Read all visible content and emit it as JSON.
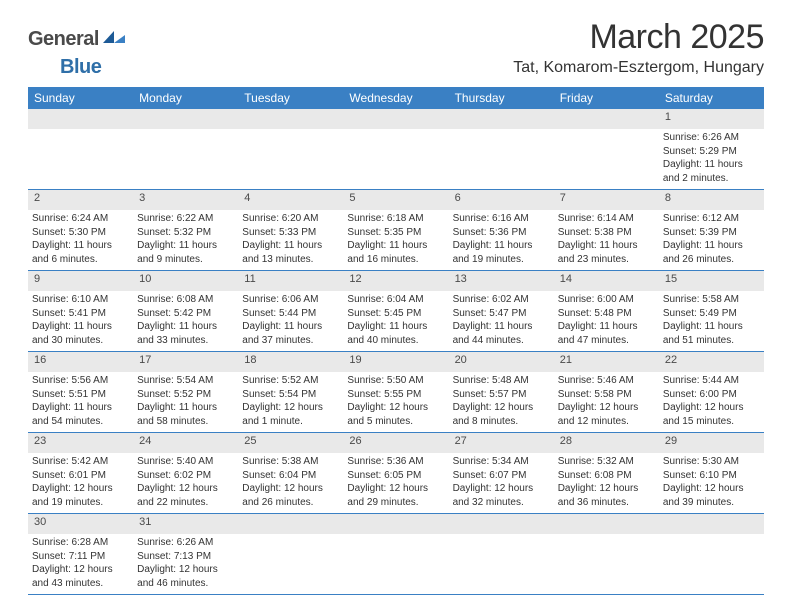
{
  "logo": {
    "text1": "General",
    "text2": "Blue"
  },
  "title": {
    "month": "March 2025",
    "location": "Tat, Komarom-Esztergom, Hungary"
  },
  "colors": {
    "header_bg": "#3a80c4",
    "header_text": "#ffffff",
    "daynum_bg": "#e9e9e9",
    "border": "#3a80c4",
    "body_text": "#333333",
    "logo_grey": "#4a4a4a",
    "logo_blue": "#2f6fa8"
  },
  "day_labels": [
    "Sunday",
    "Monday",
    "Tuesday",
    "Wednesday",
    "Thursday",
    "Friday",
    "Saturday"
  ],
  "weeks": [
    [
      {
        "num": "",
        "sunrise": "",
        "sunset": "",
        "daylight": ""
      },
      {
        "num": "",
        "sunrise": "",
        "sunset": "",
        "daylight": ""
      },
      {
        "num": "",
        "sunrise": "",
        "sunset": "",
        "daylight": ""
      },
      {
        "num": "",
        "sunrise": "",
        "sunset": "",
        "daylight": ""
      },
      {
        "num": "",
        "sunrise": "",
        "sunset": "",
        "daylight": ""
      },
      {
        "num": "",
        "sunrise": "",
        "sunset": "",
        "daylight": ""
      },
      {
        "num": "1",
        "sunrise": "Sunrise: 6:26 AM",
        "sunset": "Sunset: 5:29 PM",
        "daylight": "Daylight: 11 hours and 2 minutes."
      }
    ],
    [
      {
        "num": "2",
        "sunrise": "Sunrise: 6:24 AM",
        "sunset": "Sunset: 5:30 PM",
        "daylight": "Daylight: 11 hours and 6 minutes."
      },
      {
        "num": "3",
        "sunrise": "Sunrise: 6:22 AM",
        "sunset": "Sunset: 5:32 PM",
        "daylight": "Daylight: 11 hours and 9 minutes."
      },
      {
        "num": "4",
        "sunrise": "Sunrise: 6:20 AM",
        "sunset": "Sunset: 5:33 PM",
        "daylight": "Daylight: 11 hours and 13 minutes."
      },
      {
        "num": "5",
        "sunrise": "Sunrise: 6:18 AM",
        "sunset": "Sunset: 5:35 PM",
        "daylight": "Daylight: 11 hours and 16 minutes."
      },
      {
        "num": "6",
        "sunrise": "Sunrise: 6:16 AM",
        "sunset": "Sunset: 5:36 PM",
        "daylight": "Daylight: 11 hours and 19 minutes."
      },
      {
        "num": "7",
        "sunrise": "Sunrise: 6:14 AM",
        "sunset": "Sunset: 5:38 PM",
        "daylight": "Daylight: 11 hours and 23 minutes."
      },
      {
        "num": "8",
        "sunrise": "Sunrise: 6:12 AM",
        "sunset": "Sunset: 5:39 PM",
        "daylight": "Daylight: 11 hours and 26 minutes."
      }
    ],
    [
      {
        "num": "9",
        "sunrise": "Sunrise: 6:10 AM",
        "sunset": "Sunset: 5:41 PM",
        "daylight": "Daylight: 11 hours and 30 minutes."
      },
      {
        "num": "10",
        "sunrise": "Sunrise: 6:08 AM",
        "sunset": "Sunset: 5:42 PM",
        "daylight": "Daylight: 11 hours and 33 minutes."
      },
      {
        "num": "11",
        "sunrise": "Sunrise: 6:06 AM",
        "sunset": "Sunset: 5:44 PM",
        "daylight": "Daylight: 11 hours and 37 minutes."
      },
      {
        "num": "12",
        "sunrise": "Sunrise: 6:04 AM",
        "sunset": "Sunset: 5:45 PM",
        "daylight": "Daylight: 11 hours and 40 minutes."
      },
      {
        "num": "13",
        "sunrise": "Sunrise: 6:02 AM",
        "sunset": "Sunset: 5:47 PM",
        "daylight": "Daylight: 11 hours and 44 minutes."
      },
      {
        "num": "14",
        "sunrise": "Sunrise: 6:00 AM",
        "sunset": "Sunset: 5:48 PM",
        "daylight": "Daylight: 11 hours and 47 minutes."
      },
      {
        "num": "15",
        "sunrise": "Sunrise: 5:58 AM",
        "sunset": "Sunset: 5:49 PM",
        "daylight": "Daylight: 11 hours and 51 minutes."
      }
    ],
    [
      {
        "num": "16",
        "sunrise": "Sunrise: 5:56 AM",
        "sunset": "Sunset: 5:51 PM",
        "daylight": "Daylight: 11 hours and 54 minutes."
      },
      {
        "num": "17",
        "sunrise": "Sunrise: 5:54 AM",
        "sunset": "Sunset: 5:52 PM",
        "daylight": "Daylight: 11 hours and 58 minutes."
      },
      {
        "num": "18",
        "sunrise": "Sunrise: 5:52 AM",
        "sunset": "Sunset: 5:54 PM",
        "daylight": "Daylight: 12 hours and 1 minute."
      },
      {
        "num": "19",
        "sunrise": "Sunrise: 5:50 AM",
        "sunset": "Sunset: 5:55 PM",
        "daylight": "Daylight: 12 hours and 5 minutes."
      },
      {
        "num": "20",
        "sunrise": "Sunrise: 5:48 AM",
        "sunset": "Sunset: 5:57 PM",
        "daylight": "Daylight: 12 hours and 8 minutes."
      },
      {
        "num": "21",
        "sunrise": "Sunrise: 5:46 AM",
        "sunset": "Sunset: 5:58 PM",
        "daylight": "Daylight: 12 hours and 12 minutes."
      },
      {
        "num": "22",
        "sunrise": "Sunrise: 5:44 AM",
        "sunset": "Sunset: 6:00 PM",
        "daylight": "Daylight: 12 hours and 15 minutes."
      }
    ],
    [
      {
        "num": "23",
        "sunrise": "Sunrise: 5:42 AM",
        "sunset": "Sunset: 6:01 PM",
        "daylight": "Daylight: 12 hours and 19 minutes."
      },
      {
        "num": "24",
        "sunrise": "Sunrise: 5:40 AM",
        "sunset": "Sunset: 6:02 PM",
        "daylight": "Daylight: 12 hours and 22 minutes."
      },
      {
        "num": "25",
        "sunrise": "Sunrise: 5:38 AM",
        "sunset": "Sunset: 6:04 PM",
        "daylight": "Daylight: 12 hours and 26 minutes."
      },
      {
        "num": "26",
        "sunrise": "Sunrise: 5:36 AM",
        "sunset": "Sunset: 6:05 PM",
        "daylight": "Daylight: 12 hours and 29 minutes."
      },
      {
        "num": "27",
        "sunrise": "Sunrise: 5:34 AM",
        "sunset": "Sunset: 6:07 PM",
        "daylight": "Daylight: 12 hours and 32 minutes."
      },
      {
        "num": "28",
        "sunrise": "Sunrise: 5:32 AM",
        "sunset": "Sunset: 6:08 PM",
        "daylight": "Daylight: 12 hours and 36 minutes."
      },
      {
        "num": "29",
        "sunrise": "Sunrise: 5:30 AM",
        "sunset": "Sunset: 6:10 PM",
        "daylight": "Daylight: 12 hours and 39 minutes."
      }
    ],
    [
      {
        "num": "30",
        "sunrise": "Sunrise: 6:28 AM",
        "sunset": "Sunset: 7:11 PM",
        "daylight": "Daylight: 12 hours and 43 minutes."
      },
      {
        "num": "31",
        "sunrise": "Sunrise: 6:26 AM",
        "sunset": "Sunset: 7:13 PM",
        "daylight": "Daylight: 12 hours and 46 minutes."
      },
      {
        "num": "",
        "sunrise": "",
        "sunset": "",
        "daylight": ""
      },
      {
        "num": "",
        "sunrise": "",
        "sunset": "",
        "daylight": ""
      },
      {
        "num": "",
        "sunrise": "",
        "sunset": "",
        "daylight": ""
      },
      {
        "num": "",
        "sunrise": "",
        "sunset": "",
        "daylight": ""
      },
      {
        "num": "",
        "sunrise": "",
        "sunset": "",
        "daylight": ""
      }
    ]
  ]
}
